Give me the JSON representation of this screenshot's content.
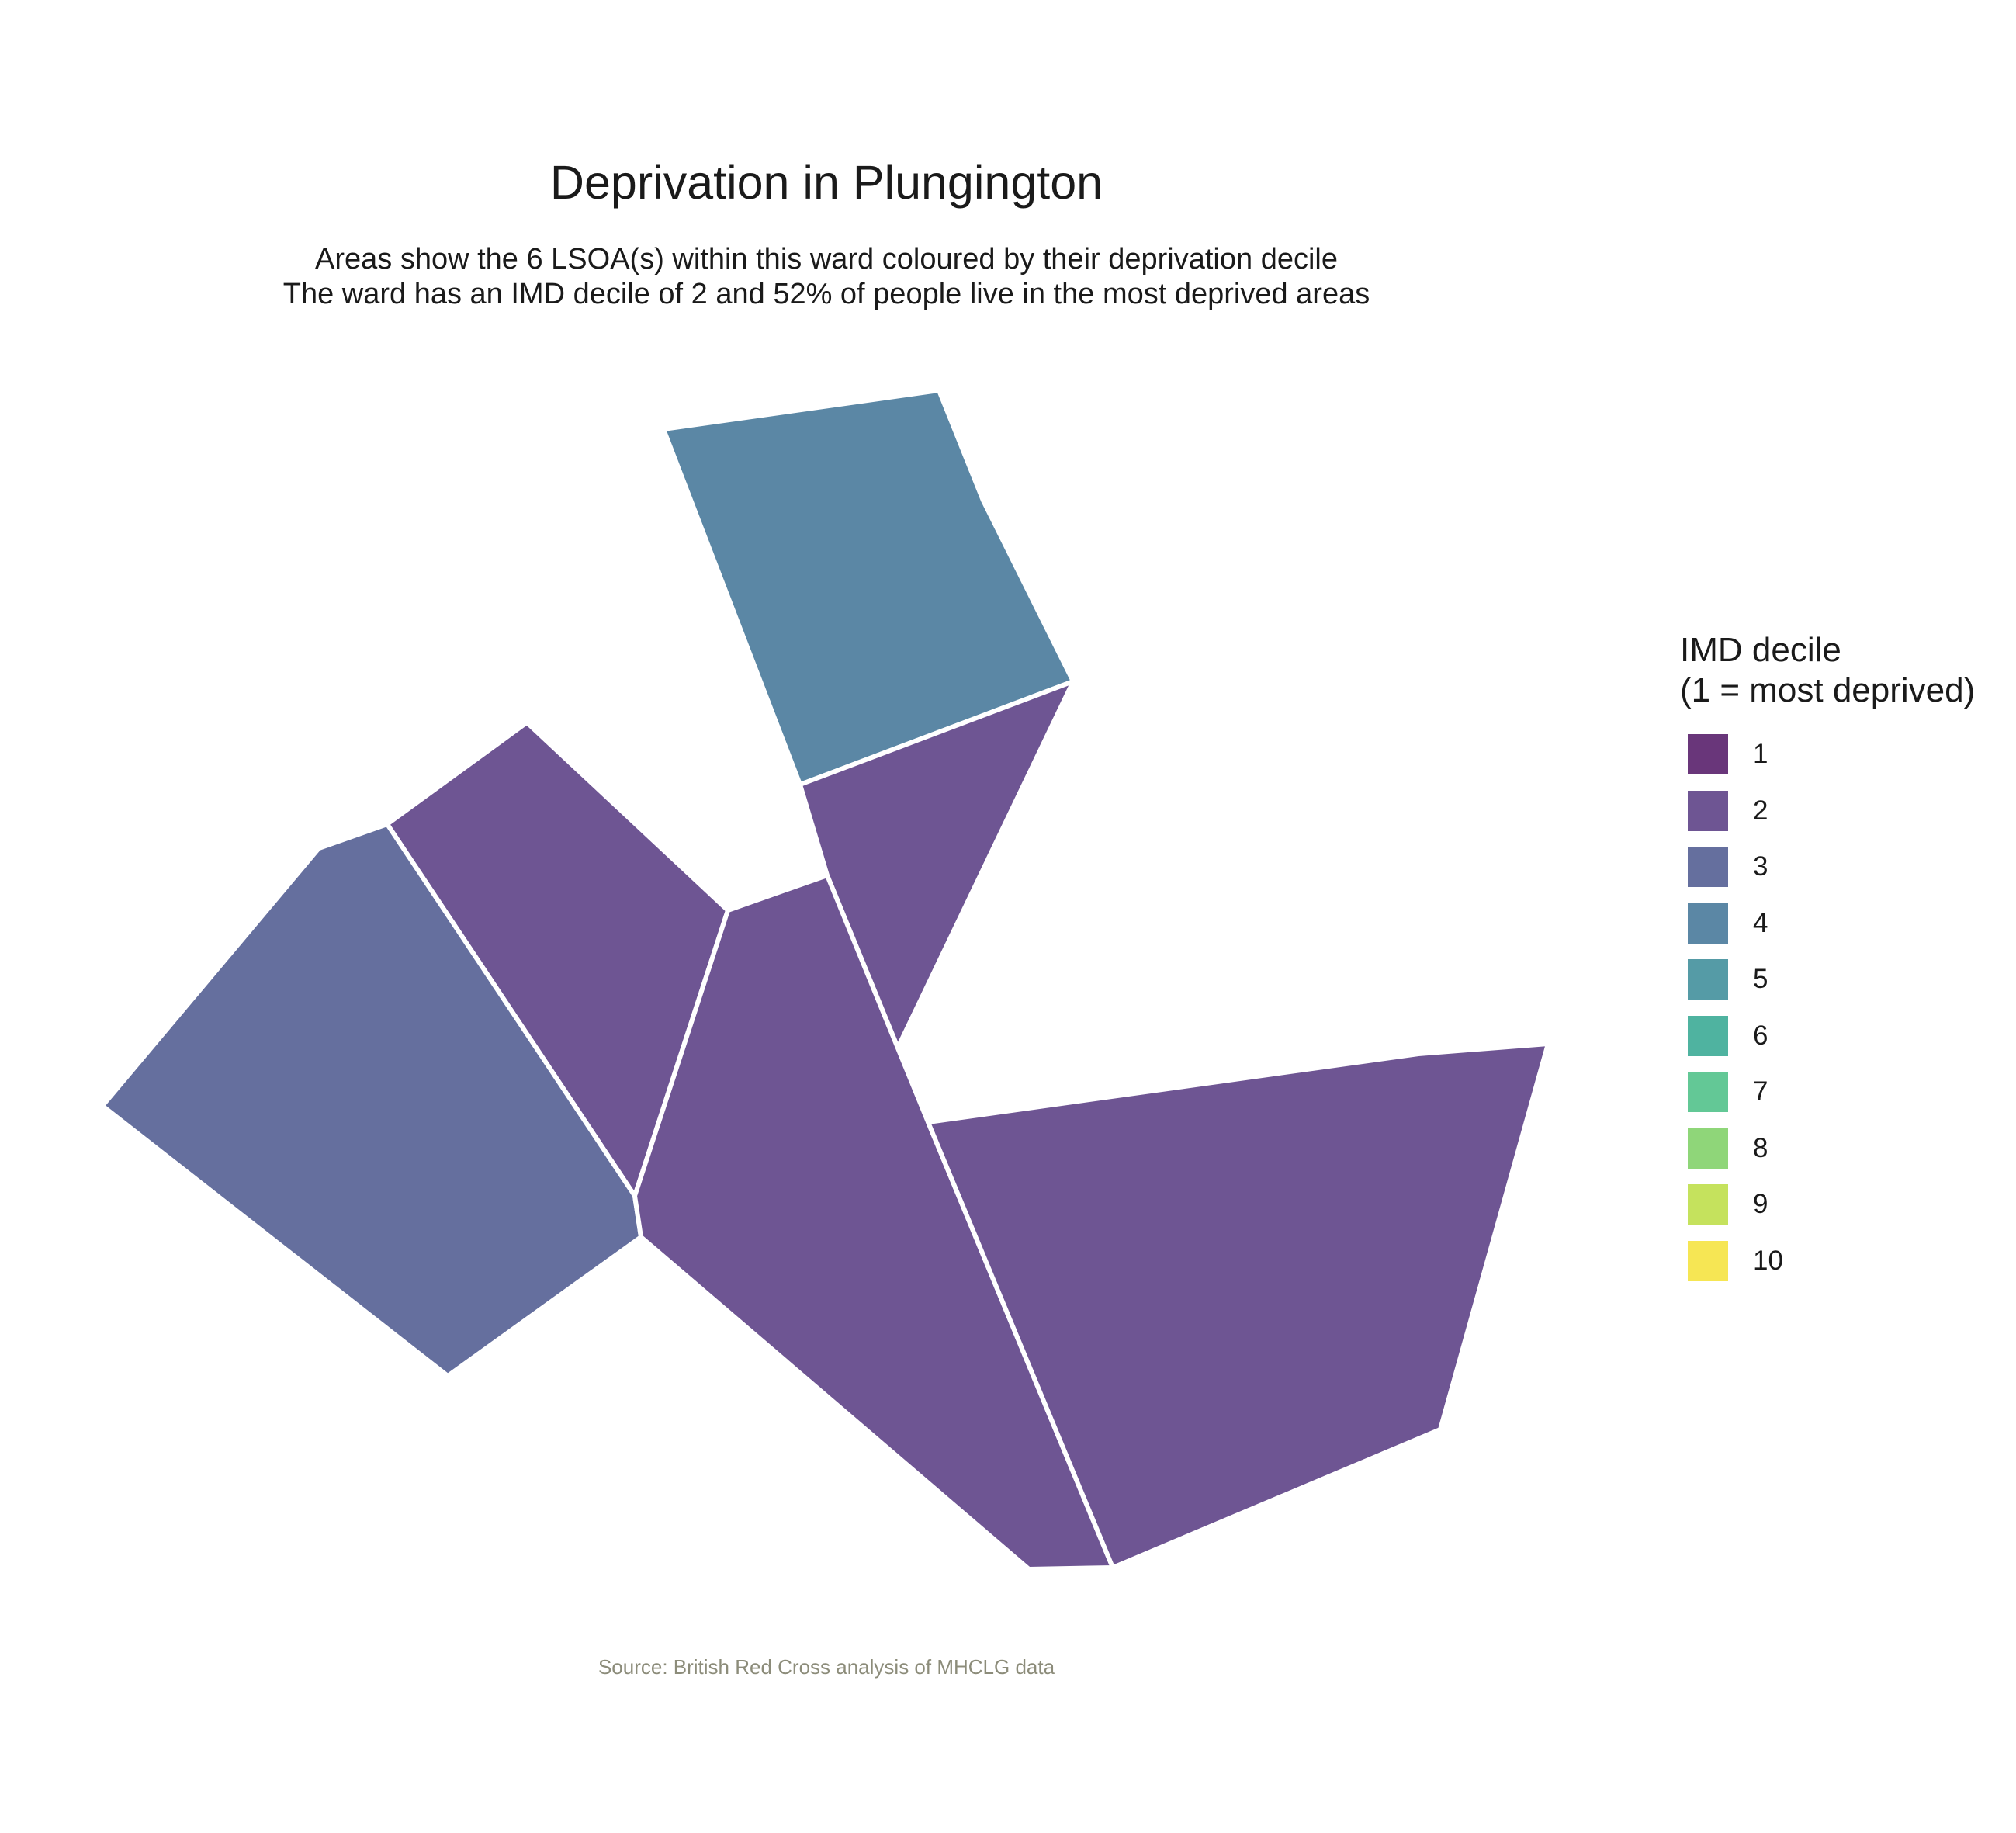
{
  "title": "Deprivation in Plungington",
  "subtitle_line1": "Areas show the 6 LSOA(s) within this ward coloured by their deprivation decile",
  "subtitle_line2": "The ward has an IMD decile of 2 and 52% of people live in the most deprived areas",
  "legend": {
    "title": "IMD decile\n(1 = most deprived)",
    "items": [
      {
        "label": "1",
        "color": "#69367a"
      },
      {
        "label": "2",
        "color": "#6e5593"
      },
      {
        "label": "3",
        "color": "#656f9e"
      },
      {
        "label": "4",
        "color": "#5b87a5"
      },
      {
        "label": "5",
        "color": "#559ba6"
      },
      {
        "label": "6",
        "color": "#4fb3a0"
      },
      {
        "label": "7",
        "color": "#63c896"
      },
      {
        "label": "8",
        "color": "#8fd679"
      },
      {
        "label": "9",
        "color": "#c5e25d"
      },
      {
        "label": "10",
        "color": "#f6e654"
      }
    ]
  },
  "areas": [
    {
      "name": "lsoa-north",
      "decile": 4
    },
    {
      "name": "lsoa-northeast-triangle",
      "decile": 2
    },
    {
      "name": "lsoa-upper-center",
      "decile": 2
    },
    {
      "name": "lsoa-west",
      "decile": 3
    },
    {
      "name": "lsoa-center",
      "decile": 2
    },
    {
      "name": "lsoa-east",
      "decile": 2
    }
  ],
  "source": "Source: British Red Cross analysis of MHCLG data"
}
